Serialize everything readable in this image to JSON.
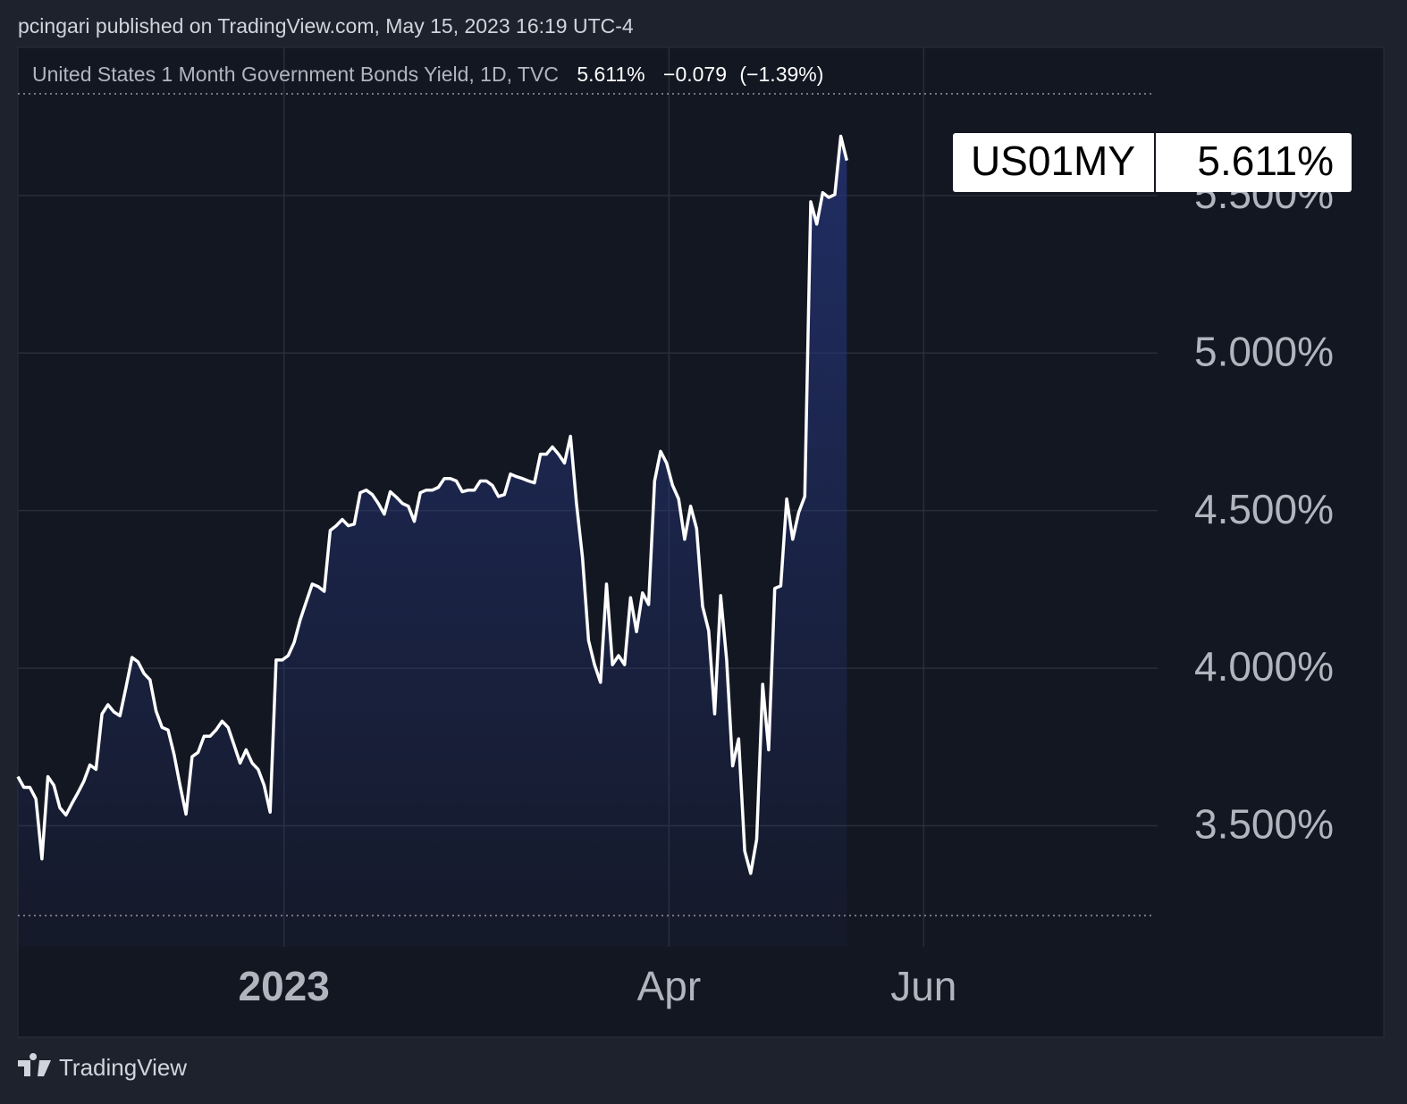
{
  "publisher_line": "pcingari published on TradingView.com, May 15, 2023 16:19 UTC-4",
  "chart_data": {
    "type": "line",
    "title": "United States 1 Month Government Bonds Yield, 1D, TVC",
    "header_last": "5.611%",
    "header_change": "−0.079",
    "header_change_pct": "(−1.39%)",
    "symbol": "US01MY",
    "last_value_label": "5.611%",
    "color": "#ffffff",
    "grid": true,
    "values": [
      3.656,
      3.622,
      3.622,
      3.585,
      3.395,
      3.656,
      3.628,
      3.557,
      3.534,
      3.571,
      3.605,
      3.642,
      3.693,
      3.679,
      3.855,
      3.884,
      3.861,
      3.849,
      3.94,
      4.034,
      4.02,
      3.983,
      3.963,
      3.864,
      3.812,
      3.804,
      3.727,
      3.628,
      3.537,
      3.719,
      3.733,
      3.784,
      3.784,
      3.804,
      3.832,
      3.812,
      3.756,
      3.699,
      3.741,
      3.699,
      3.679,
      3.628,
      3.543,
      4.026,
      4.026,
      4.04,
      4.082,
      4.153,
      4.21,
      4.267,
      4.259,
      4.244,
      4.437,
      4.452,
      4.472,
      4.452,
      4.457,
      4.557,
      4.565,
      4.551,
      4.523,
      4.489,
      4.56,
      4.543,
      4.523,
      4.514,
      4.466,
      4.557,
      4.565,
      4.565,
      4.574,
      4.602,
      4.602,
      4.594,
      4.56,
      4.565,
      4.565,
      4.594,
      4.594,
      4.58,
      4.545,
      4.551,
      4.616,
      4.608,
      4.602,
      4.594,
      4.588,
      4.679,
      4.679,
      4.702,
      4.679,
      4.651,
      4.736,
      4.523,
      4.352,
      4.088,
      4.011,
      3.955,
      4.267,
      4.011,
      4.04,
      4.011,
      4.224,
      4.116,
      4.239,
      4.202,
      4.594,
      4.688,
      4.651,
      4.58,
      4.537,
      4.409,
      4.514,
      4.443,
      4.196,
      4.119,
      3.855,
      4.23,
      4.026,
      3.69,
      3.776,
      3.42,
      3.349,
      3.457,
      3.949,
      3.741,
      4.253,
      4.261,
      4.537,
      4.409,
      4.494,
      4.545,
      5.48,
      5.409,
      5.509,
      5.494,
      5.503,
      5.688,
      5.611
    ],
    "xlim": [
      0,
      189
    ],
    "xticks": [
      {
        "value": 44.3,
        "label": "2023"
      },
      {
        "value": 108.4,
        "label": "Apr"
      },
      {
        "value": 150.8,
        "label": "Jun"
      }
    ],
    "ylim": [
      3.116,
      5.97
    ],
    "yticks": [
      {
        "value": 3.5,
        "label": "3.500%"
      },
      {
        "value": 4.0,
        "label": "4.000%"
      },
      {
        "value": 4.5,
        "label": "4.500%"
      },
      {
        "value": 5.0,
        "label": "5.000%"
      },
      {
        "value": 5.5,
        "label": "5.500%"
      }
    ]
  },
  "footer": "TradingView"
}
